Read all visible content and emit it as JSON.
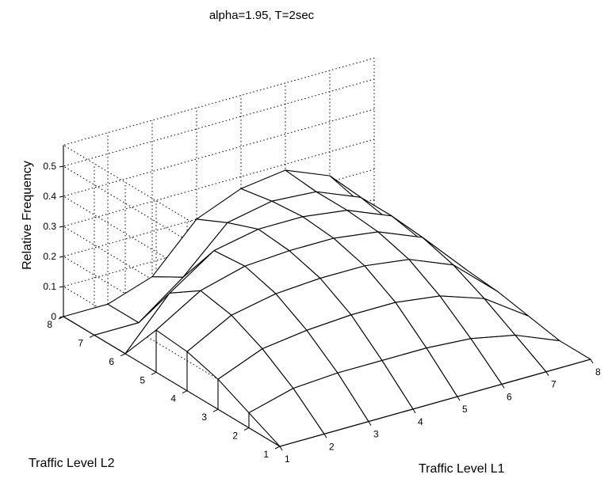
{
  "chart_data": {
    "type": "surface",
    "title": "alpha=1.95, T=2sec",
    "xlabel": "Traffic Level L1",
    "ylabel": "Traffic Level L2",
    "zlabel": "Relative Frequency",
    "x_ticks": [
      "1",
      "2",
      "3",
      "4",
      "5",
      "6",
      "7",
      "8"
    ],
    "y_ticks": [
      "1",
      "2",
      "3",
      "4",
      "5",
      "6",
      "7",
      "8"
    ],
    "z_ticks": [
      "0",
      "0.1",
      "0.2",
      "0.3",
      "0.4",
      "0.5"
    ],
    "xlim": [
      1,
      8
    ],
    "ylim": [
      1,
      8
    ],
    "zlim": [
      0,
      0.5
    ],
    "grid": true,
    "x": [
      1,
      2,
      3,
      4,
      5,
      6,
      7,
      8
    ],
    "y": [
      1,
      2,
      3,
      4,
      5,
      6,
      7,
      8
    ],
    "z": [
      [
        0.0,
        0.0,
        0.0,
        0.0,
        0.0,
        0.0,
        0.0,
        0.0
      ],
      [
        0.05,
        0.09,
        0.1,
        0.1,
        0.1,
        0.09,
        0.06,
        0.0
      ],
      [
        0.1,
        0.16,
        0.18,
        0.19,
        0.19,
        0.17,
        0.12,
        0.02
      ],
      [
        0.13,
        0.21,
        0.24,
        0.25,
        0.25,
        0.23,
        0.17,
        0.04
      ],
      [
        0.14,
        0.23,
        0.27,
        0.28,
        0.28,
        0.26,
        0.2,
        0.05
      ],
      [
        0.0,
        0.16,
        0.26,
        0.29,
        0.29,
        0.27,
        0.21,
        0.05
      ],
      [
        0.0,
        0.0,
        0.11,
        0.25,
        0.28,
        0.27,
        0.21,
        0.05
      ],
      [
        0.0,
        0.0,
        0.05,
        0.2,
        0.26,
        0.28,
        0.22,
        0.05
      ]
    ]
  }
}
